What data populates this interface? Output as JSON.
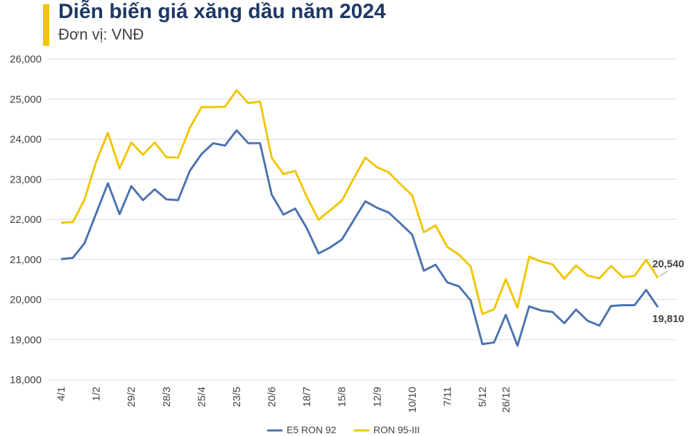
{
  "header": {
    "title": "Diễn biến giá xăng dầu năm 2024",
    "subtitle": "Đơn vị: VNĐ"
  },
  "colors": {
    "accent": "#f2c500",
    "title": "#1f3864",
    "e5": "#4a72b0",
    "ron95": "#f2c500",
    "grid": "#d9d9d9"
  },
  "chart_data": {
    "type": "line",
    "title": "Diễn biến giá xăng dầu năm 2024",
    "subtitle": "Đơn vị: VNĐ",
    "ylim": [
      18000,
      26000
    ],
    "yticks": [
      18000,
      19000,
      20000,
      21000,
      22000,
      23000,
      24000,
      25000,
      26000
    ],
    "ytick_labels": [
      "18,000",
      "19,000",
      "20,000",
      "21,000",
      "22,000",
      "23,000",
      "24,000",
      "25,000",
      "26,000"
    ],
    "grid": true,
    "legend": "bottom",
    "x_labels": [
      {
        "index": 0,
        "label": "4/1"
      },
      {
        "index": 3,
        "label": "1/2"
      },
      {
        "index": 6,
        "label": "29/2"
      },
      {
        "index": 9,
        "label": "28/3"
      },
      {
        "index": 12,
        "label": "25/4"
      },
      {
        "index": 15,
        "label": "23/5"
      },
      {
        "index": 18,
        "label": "20/6"
      },
      {
        "index": 21,
        "label": "18/7"
      },
      {
        "index": 24,
        "label": "15/8"
      },
      {
        "index": 27,
        "label": "12/9"
      },
      {
        "index": 30,
        "label": "10/10"
      },
      {
        "index": 33,
        "label": "7/11"
      },
      {
        "index": 36,
        "label": "5/12"
      },
      {
        "index": 38,
        "label": "26/12"
      }
    ],
    "series": [
      {
        "name": "E5 RON 92",
        "color": "#4a72b0",
        "values": [
          21010,
          21040,
          21400,
          22150,
          22900,
          22130,
          22830,
          22480,
          22750,
          22500,
          22480,
          23210,
          23630,
          23900,
          23840,
          24220,
          23900,
          23900,
          22620,
          22120,
          22270,
          21780,
          21150,
          21300,
          21500,
          21980,
          22450,
          22290,
          22170,
          21900,
          21620,
          20720,
          20870,
          20430,
          20330,
          19980,
          18890,
          18930,
          19620,
          18850,
          19830,
          19730,
          19690,
          19410,
          19750,
          19470,
          19350,
          19840,
          19860,
          19860,
          20240,
          19810
        ],
        "end_label": "19,810"
      },
      {
        "name": "RON 95-III",
        "color": "#f2c500",
        "values": [
          21920,
          21930,
          22490,
          23440,
          24160,
          23270,
          23920,
          23610,
          23920,
          23550,
          23540,
          24280,
          24800,
          24800,
          24810,
          25220,
          24900,
          24940,
          23540,
          23130,
          23210,
          22560,
          21990,
          22230,
          22470,
          23020,
          23540,
          23300,
          23170,
          22880,
          22600,
          21680,
          21850,
          21310,
          21120,
          20820,
          19640,
          19760,
          20510,
          19800,
          21070,
          20950,
          20880,
          20520,
          20850,
          20600,
          20530,
          20840,
          20560,
          20590,
          20990,
          20540
        ],
        "end_label": "20,540"
      }
    ]
  }
}
